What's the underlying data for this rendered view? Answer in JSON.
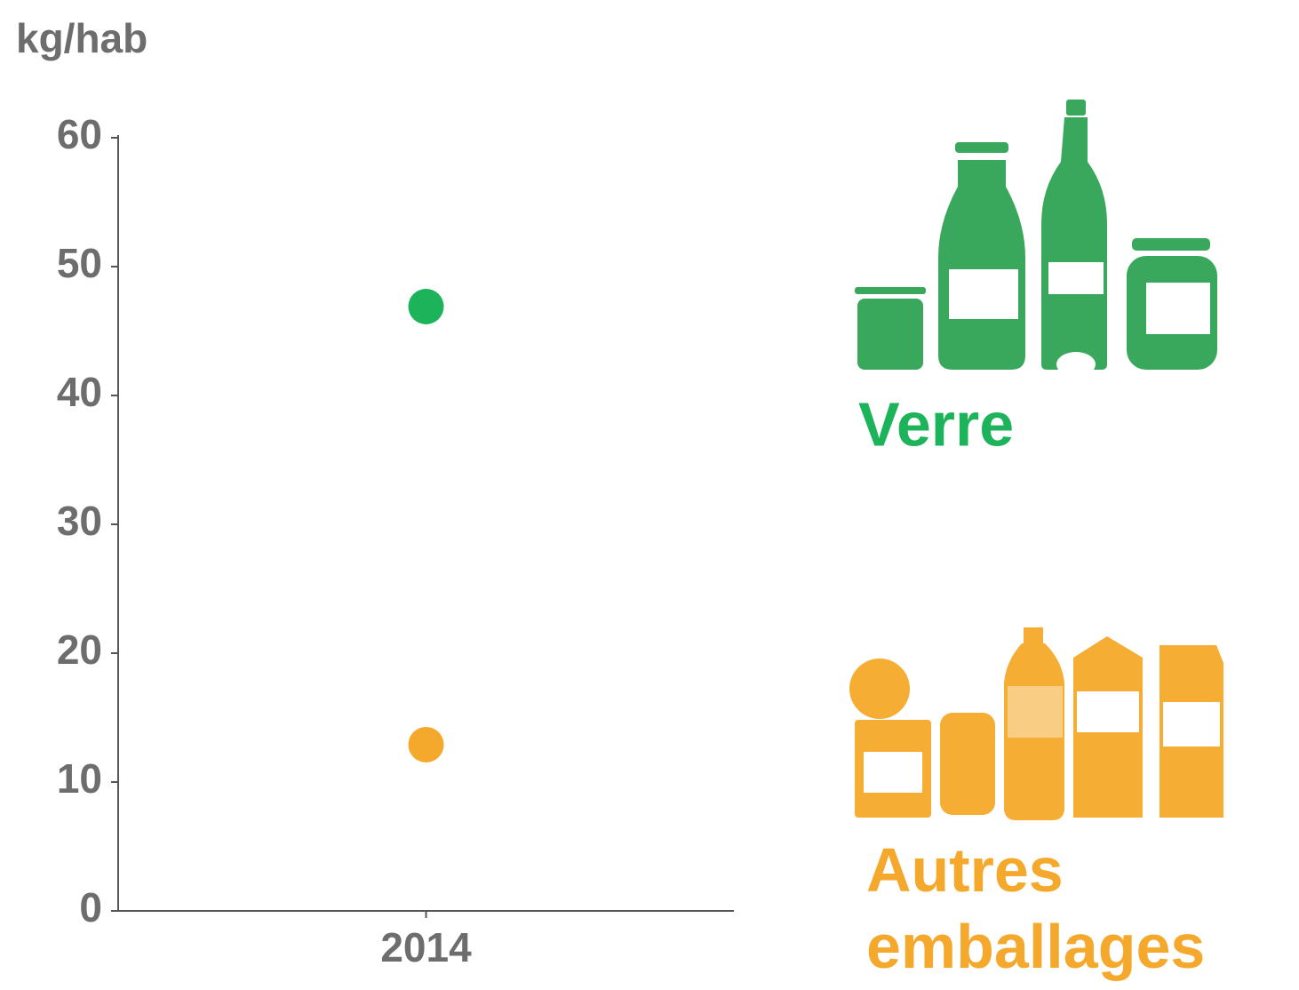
{
  "chart_data": {
    "type": "scatter",
    "y_label": "kg/hab",
    "categories": [
      "2014"
    ],
    "series": [
      {
        "name": "Verre",
        "color": "#1db35a",
        "values": [
          46.9
        ]
      },
      {
        "name": "Autres emballages",
        "color": "#f5a92c",
        "values": [
          12.9
        ]
      }
    ],
    "ylim": [
      0,
      60
    ],
    "yticks": [
      0,
      10,
      20,
      30,
      40,
      50,
      60
    ],
    "grid": false
  }
}
